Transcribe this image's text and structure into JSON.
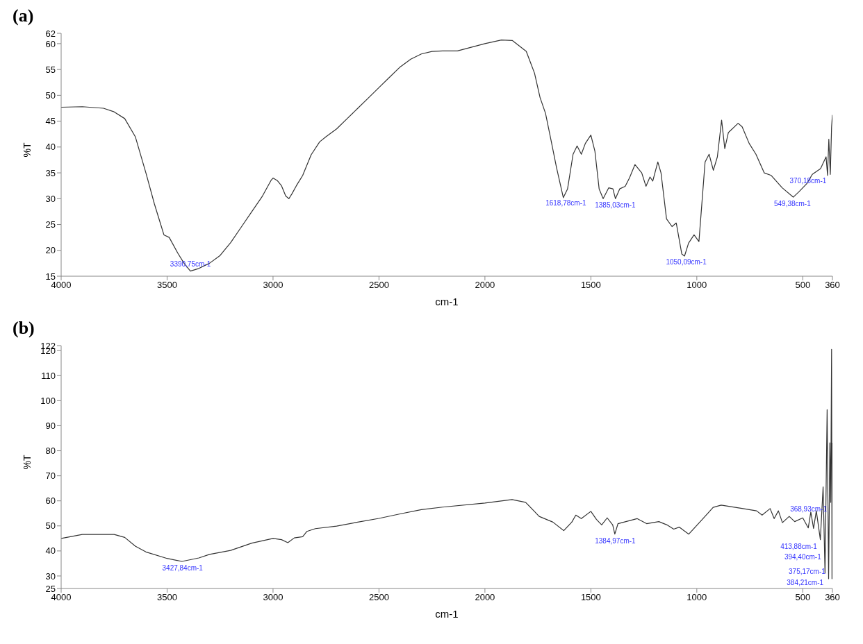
{
  "chart_data": [
    {
      "type": "line",
      "title": "(a)",
      "xlabel": "cm-1",
      "ylabel": "%T",
      "xlim": [
        4000,
        360
      ],
      "xticks": [
        4000,
        3500,
        3000,
        2500,
        2000,
        1500,
        1000,
        500,
        360
      ],
      "ylim": [
        15,
        62
      ],
      "yticks": [
        15,
        20,
        25,
        30,
        35,
        40,
        45,
        50,
        55,
        60,
        62
      ],
      "grid": false,
      "legend": false,
      "marker": "none",
      "line_style": "solid",
      "color": "#333333",
      "x": [
        4000,
        3900,
        3800,
        3750,
        3700,
        3650,
        3600,
        3560,
        3530,
        3515,
        3490,
        3450,
        3420,
        3390,
        3350,
        3300,
        3250,
        3200,
        3150,
        3100,
        3050,
        3010,
        3000,
        2980,
        2960,
        2940,
        2925,
        2910,
        2890,
        2860,
        2850,
        2820,
        2780,
        2750,
        2700,
        2650,
        2600,
        2550,
        2500,
        2450,
        2400,
        2350,
        2300,
        2250,
        2200,
        2130,
        2000,
        1922,
        1870,
        1805,
        1766,
        1740,
        1714,
        1688,
        1662,
        1630,
        1610,
        1584,
        1565,
        1545,
        1526,
        1500,
        1481,
        1461,
        1442,
        1416,
        1396,
        1384,
        1364,
        1338,
        1318,
        1292,
        1260,
        1240,
        1221,
        1208,
        1184,
        1169,
        1143,
        1117,
        1097,
        1071,
        1058,
        1039,
        1013,
        990,
        961,
        942,
        922,
        903,
        883,
        868,
        851,
        805,
        786,
        753,
        721,
        682,
        649,
        597,
        545,
        519,
        481,
        455,
        416,
        390,
        383,
        377,
        370,
        364,
        360
      ],
      "values": [
        47.7,
        47.8,
        47.5,
        46.8,
        45.5,
        42,
        35,
        29,
        25,
        23,
        22.5,
        19.5,
        17.5,
        16,
        16.5,
        17.5,
        19,
        21.5,
        24.5,
        27.5,
        30.5,
        33.5,
        34,
        33.5,
        32.5,
        30.5,
        30,
        31,
        32.5,
        34.5,
        35.5,
        38.5,
        41,
        42,
        43.5,
        45.5,
        47.5,
        49.5,
        51.5,
        53.5,
        55.5,
        57,
        58,
        58.5,
        58.6,
        58.6,
        60,
        60.7,
        60.6,
        58.5,
        54.3,
        49.6,
        46.5,
        41.3,
        36,
        30.2,
        31.9,
        38.6,
        40.2,
        38.6,
        40.7,
        42.3,
        39.2,
        31.9,
        30,
        32.1,
        31.9,
        30,
        31.9,
        32.4,
        34,
        36.6,
        35,
        32.4,
        34.2,
        33.4,
        37.1,
        35,
        26.1,
        24.6,
        25.3,
        19.3,
        18.9,
        21.4,
        23,
        21.7,
        37.1,
        38.6,
        35.5,
        38.1,
        45.2,
        39.7,
        42.8,
        44.6,
        43.9,
        40.7,
        38.6,
        35,
        34.5,
        32.1,
        30.3,
        31.3,
        32.9,
        34.7,
        35.8,
        38.1,
        34.5,
        41.5,
        34.7,
        43.9,
        46.2
      ],
      "annotations": [
        {
          "text": "3390,75cm-1",
          "x": 3390,
          "y": 16
        },
        {
          "text": "1618,78cm-1",
          "x": 1618,
          "y": 30.5
        },
        {
          "text": "1385,03cm-1",
          "x": 1385,
          "y": 30
        },
        {
          "text": "1050,09cm-1",
          "x": 1050,
          "y": 19
        },
        {
          "text": "549,38cm-1",
          "x": 549,
          "y": 30.3
        },
        {
          "text": "370,18cm-1",
          "x": 370,
          "y": 34.7
        }
      ]
    },
    {
      "type": "line",
      "title": "(b)",
      "xlabel": "cm-1",
      "ylabel": "%T",
      "xlim": [
        4000,
        360
      ],
      "xticks": [
        4000,
        3500,
        3000,
        2500,
        2000,
        1500,
        1000,
        500,
        360
      ],
      "ylim": [
        25,
        122
      ],
      "yticks": [
        25,
        30,
        40,
        50,
        60,
        70,
        80,
        90,
        100,
        110,
        120,
        122
      ],
      "grid": false,
      "legend": false,
      "marker": "none",
      "line_style": "solid",
      "color": "#333333",
      "x": [
        4000,
        3900,
        3800,
        3750,
        3700,
        3650,
        3600,
        3500,
        3430,
        3350,
        3300,
        3200,
        3100,
        3000,
        2960,
        2930,
        2900,
        2860,
        2840,
        2800,
        2700,
        2600,
        2500,
        2400,
        2300,
        2200,
        2000,
        1872,
        1808,
        1769,
        1744,
        1679,
        1628,
        1590,
        1571,
        1545,
        1500,
        1474,
        1449,
        1423,
        1397,
        1387,
        1372,
        1282,
        1237,
        1179,
        1141,
        1109,
        1083,
        1038,
        974,
        923,
        885,
        782,
        718,
        692,
        654,
        635,
        615,
        596,
        564,
        538,
        500,
        474,
        462,
        449,
        436,
        417,
        404,
        395,
        385,
        378,
        372,
        368,
        364,
        362,
        360
      ],
      "values": [
        45,
        46.6,
        46.6,
        46.6,
        45.4,
        41.9,
        39.6,
        37,
        35.8,
        37.2,
        38.6,
        40.2,
        43.1,
        45,
        44.5,
        43.3,
        45.2,
        45.7,
        47.8,
        48.9,
        49.9,
        51.5,
        53,
        54.8,
        56.5,
        57.5,
        59.1,
        60.5,
        59.4,
        56,
        53.8,
        51.5,
        48.1,
        51.5,
        54.3,
        52.9,
        55.8,
        52.6,
        50.4,
        53.2,
        50.4,
        46.7,
        50.9,
        52.9,
        50.9,
        51.7,
        50.4,
        48.7,
        49.5,
        46.7,
        52.6,
        57.4,
        58.3,
        56.9,
        56,
        54.3,
        56.9,
        52.9,
        56,
        51.3,
        53.8,
        51.7,
        53.2,
        49.2,
        55.5,
        49,
        56,
        44.5,
        65.6,
        31.1,
        96.4,
        28.9,
        83.2,
        59.4,
        120.5,
        28.9,
        83.2
      ],
      "annotations": [
        {
          "text": "3427,84cm-1",
          "x": 3427,
          "y": 35.8
        },
        {
          "text": "1384,97cm-1",
          "x": 1385,
          "y": 46.7
        },
        {
          "text": "368,93cm-1",
          "x": 368,
          "y": 59.4
        },
        {
          "text": "413,88cm-1",
          "x": 414,
          "y": 44.5
        },
        {
          "text": "384,21cm-1",
          "x": 384,
          "y": 30
        },
        {
          "text": "375,17cm-1",
          "x": 375,
          "y": 28.9
        },
        {
          "text": "394,40cm-1",
          "x": 395,
          "y": 31.1
        }
      ]
    }
  ]
}
